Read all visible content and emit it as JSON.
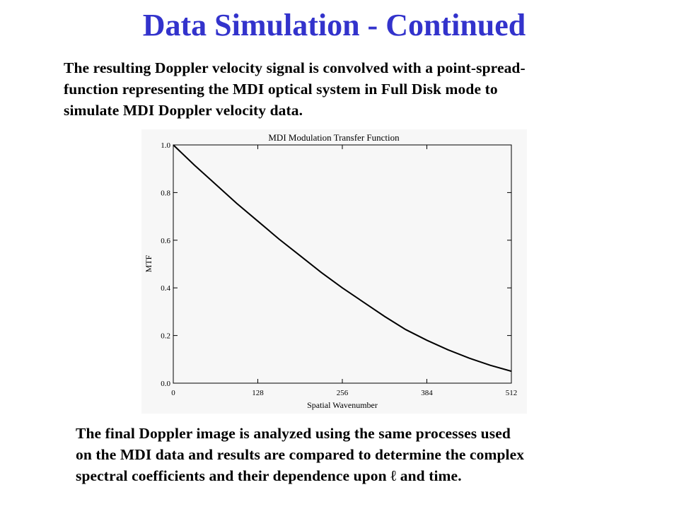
{
  "slide": {
    "title": "Data Simulation - Continued",
    "intro_lines": [
      "The resulting Doppler velocity signal is convolved with a point-spread-",
      "function representing the MDI optical system in Full Disk mode to",
      "simulate MDI Doppler velocity data."
    ],
    "outro_lines": [
      "The final Doppler image is analyzed using the same processes used",
      "on the MDI data and results are compared to determine the complex",
      "spectral coefficients and their dependence upon ℓ and time."
    ]
  },
  "chart_data": {
    "type": "line",
    "title": "MDI Modulation Transfer Function",
    "xlabel": "Spatial Wavenumber",
    "ylabel": "MTF",
    "xlim": [
      0,
      512
    ],
    "ylim": [
      0,
      1.0
    ],
    "x_ticks": [
      0,
      128,
      256,
      384,
      512
    ],
    "x_tick_labels": [
      "0",
      "128",
      "256",
      "384",
      "512"
    ],
    "y_ticks": [
      0,
      0.2,
      0.4,
      0.6,
      0.8,
      1.0
    ],
    "y_tick_labels": [
      "0.0",
      "0.2",
      "0.4",
      "0.6",
      "0.8",
      "1.0"
    ],
    "grid": false,
    "series": [
      {
        "x": [
          0,
          32,
          64,
          96,
          128,
          160,
          192,
          224,
          256,
          288,
          320,
          352,
          384,
          416,
          448,
          480,
          512
        ],
        "y": [
          1.0,
          0.915,
          0.835,
          0.755,
          0.68,
          0.605,
          0.535,
          0.465,
          0.4,
          0.34,
          0.28,
          0.225,
          0.18,
          0.14,
          0.105,
          0.075,
          0.05
        ]
      }
    ],
    "line_color": "#000000"
  }
}
